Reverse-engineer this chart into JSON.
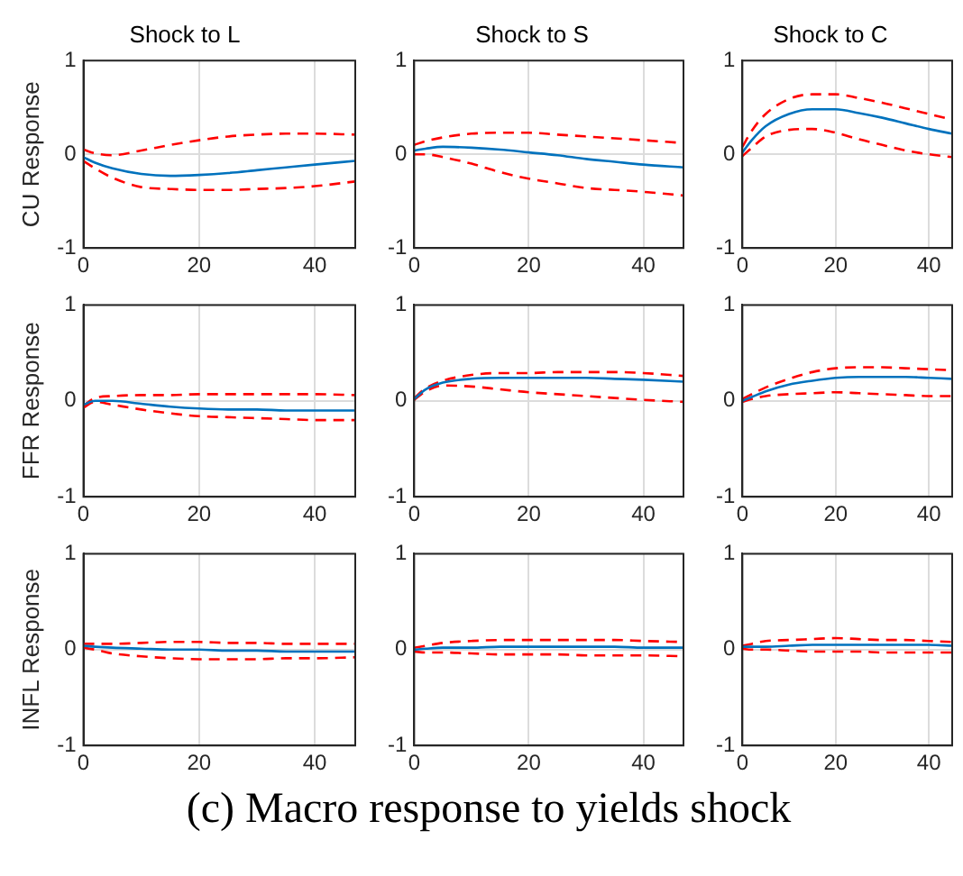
{
  "chart_data": [
    {
      "type": "line",
      "title": "Shock to L",
      "ylabel": "CU Response",
      "x": [
        0,
        2,
        5,
        10,
        15,
        20,
        25,
        30,
        35,
        40,
        47
      ],
      "xlim": [
        0,
        47
      ],
      "xticks": [
        0,
        20,
        40
      ],
      "ylim": [
        -1,
        1
      ],
      "yticks": [
        -1,
        0,
        1
      ],
      "grid": true,
      "series": [
        {
          "color": "#0072bd",
          "line_style": "solid",
          "values": [
            -0.03,
            -0.09,
            -0.15,
            -0.21,
            -0.23,
            -0.22,
            -0.2,
            -0.17,
            -0.14,
            -0.11,
            -0.07
          ]
        },
        {
          "color": "#ff0000",
          "line_style": "dashed",
          "values": [
            0.05,
            0.01,
            -0.01,
            0.04,
            0.1,
            0.15,
            0.19,
            0.21,
            0.22,
            0.22,
            0.21
          ]
        },
        {
          "color": "#ff0000",
          "line_style": "dashed",
          "values": [
            -0.07,
            -0.15,
            -0.25,
            -0.35,
            -0.37,
            -0.38,
            -0.38,
            -0.37,
            -0.36,
            -0.34,
            -0.29
          ]
        }
      ]
    },
    {
      "type": "line",
      "title": "Shock to S",
      "x": [
        0,
        2,
        5,
        10,
        15,
        20,
        25,
        30,
        35,
        40,
        47
      ],
      "xlim": [
        0,
        47
      ],
      "xticks": [
        0,
        20,
        40
      ],
      "ylim": [
        -1,
        1
      ],
      "yticks": [
        -1,
        0,
        1
      ],
      "grid": true,
      "series": [
        {
          "color": "#0072bd",
          "line_style": "solid",
          "values": [
            0.04,
            0.06,
            0.08,
            0.07,
            0.05,
            0.02,
            -0.01,
            -0.05,
            -0.08,
            -0.11,
            -0.14
          ]
        },
        {
          "color": "#ff0000",
          "line_style": "dashed",
          "values": [
            0.1,
            0.14,
            0.18,
            0.22,
            0.23,
            0.23,
            0.21,
            0.19,
            0.17,
            0.15,
            0.12
          ]
        },
        {
          "color": "#ff0000",
          "line_style": "dashed",
          "values": [
            0,
            0,
            -0.03,
            -0.1,
            -0.19,
            -0.26,
            -0.31,
            -0.36,
            -0.38,
            -0.4,
            -0.44
          ]
        }
      ]
    },
    {
      "type": "line",
      "title": "Shock to C",
      "x": [
        0,
        2,
        5,
        10,
        15,
        20,
        25,
        30,
        35,
        40,
        45
      ],
      "xlim": [
        0,
        45
      ],
      "xticks": [
        0,
        20,
        40
      ],
      "ylim": [
        -1,
        1
      ],
      "yticks": [
        -1,
        0,
        1
      ],
      "grid": true,
      "series": [
        {
          "color": "#0072bd",
          "line_style": "solid",
          "values": [
            0.02,
            0.15,
            0.3,
            0.43,
            0.48,
            0.48,
            0.44,
            0.39,
            0.33,
            0.27,
            0.22
          ]
        },
        {
          "color": "#ff0000",
          "line_style": "dashed",
          "values": [
            0.08,
            0.25,
            0.43,
            0.59,
            0.64,
            0.64,
            0.6,
            0.55,
            0.49,
            0.43,
            0.37
          ]
        },
        {
          "color": "#ff0000",
          "line_style": "dashed",
          "values": [
            -0.02,
            0.07,
            0.19,
            0.26,
            0.27,
            0.23,
            0.16,
            0.1,
            0.04,
            0,
            -0.03
          ]
        }
      ]
    },
    {
      "type": "line",
      "ylabel": "FFR Response",
      "x": [
        0,
        2,
        5,
        10,
        15,
        20,
        25,
        30,
        35,
        40,
        47
      ],
      "xlim": [
        0,
        47
      ],
      "xticks": [
        0,
        20,
        40
      ],
      "ylim": [
        -1,
        1
      ],
      "yticks": [
        -1,
        0,
        1
      ],
      "grid": true,
      "series": [
        {
          "color": "#0072bd",
          "line_style": "solid",
          "values": [
            -0.04,
            0,
            0,
            -0.03,
            -0.06,
            -0.08,
            -0.09,
            -0.09,
            -0.1,
            -0.1,
            -0.1
          ]
        },
        {
          "color": "#ff0000",
          "line_style": "dashed",
          "values": [
            -0.05,
            0.03,
            0.05,
            0.06,
            0.06,
            0.07,
            0.07,
            0.07,
            0.07,
            0.07,
            0.06
          ]
        },
        {
          "color": "#ff0000",
          "line_style": "dashed",
          "values": [
            -0.07,
            -0.01,
            -0.04,
            -0.09,
            -0.13,
            -0.16,
            -0.17,
            -0.18,
            -0.19,
            -0.2,
            -0.2
          ]
        }
      ]
    },
    {
      "type": "line",
      "x": [
        0,
        2,
        5,
        10,
        15,
        20,
        25,
        30,
        35,
        40,
        47
      ],
      "xlim": [
        0,
        47
      ],
      "xticks": [
        0,
        20,
        40
      ],
      "ylim": [
        -1,
        1
      ],
      "yticks": [
        -1,
        0,
        1
      ],
      "grid": true,
      "series": [
        {
          "color": "#0072bd",
          "line_style": "solid",
          "values": [
            0.02,
            0.12,
            0.19,
            0.23,
            0.24,
            0.24,
            0.24,
            0.24,
            0.23,
            0.22,
            0.2
          ]
        },
        {
          "color": "#ff0000",
          "line_style": "dashed",
          "values": [
            0.03,
            0.13,
            0.21,
            0.27,
            0.29,
            0.29,
            0.3,
            0.3,
            0.3,
            0.29,
            0.26
          ]
        },
        {
          "color": "#ff0000",
          "line_style": "dashed",
          "values": [
            0.01,
            0.1,
            0.16,
            0.15,
            0.12,
            0.09,
            0.07,
            0.05,
            0.03,
            0.01,
            -0.01
          ]
        }
      ]
    },
    {
      "type": "line",
      "x": [
        0,
        2,
        5,
        10,
        15,
        20,
        25,
        30,
        35,
        40,
        45
      ],
      "xlim": [
        0,
        45
      ],
      "xticks": [
        0,
        20,
        40
      ],
      "ylim": [
        -1,
        1
      ],
      "yticks": [
        -1,
        0,
        1
      ],
      "grid": true,
      "series": [
        {
          "color": "#0072bd",
          "line_style": "solid",
          "values": [
            0,
            0.04,
            0.1,
            0.17,
            0.21,
            0.24,
            0.25,
            0.25,
            0.25,
            0.24,
            0.23
          ]
        },
        {
          "color": "#ff0000",
          "line_style": "dashed",
          "values": [
            0.02,
            0.07,
            0.14,
            0.23,
            0.3,
            0.34,
            0.35,
            0.35,
            0.34,
            0.33,
            0.32
          ]
        },
        {
          "color": "#ff0000",
          "line_style": "dashed",
          "values": [
            -0.01,
            0.02,
            0.05,
            0.07,
            0.08,
            0.09,
            0.08,
            0.07,
            0.06,
            0.05,
            0.05
          ]
        }
      ]
    },
    {
      "type": "line",
      "ylabel": "INFL Response",
      "x": [
        0,
        2,
        5,
        10,
        15,
        20,
        25,
        30,
        35,
        40,
        47
      ],
      "xlim": [
        0,
        47
      ],
      "xticks": [
        0,
        20,
        40
      ],
      "ylim": [
        -1,
        1
      ],
      "yticks": [
        -1,
        0,
        1
      ],
      "grid": true,
      "series": [
        {
          "color": "#0072bd",
          "line_style": "solid",
          "values": [
            0.04,
            0.03,
            0.02,
            0.01,
            0,
            0,
            -0.01,
            -0.01,
            -0.02,
            -0.02,
            -0.02
          ]
        },
        {
          "color": "#ff0000",
          "line_style": "dashed",
          "values": [
            0.06,
            0.06,
            0.06,
            0.07,
            0.08,
            0.08,
            0.07,
            0.07,
            0.06,
            0.06,
            0.06
          ]
        },
        {
          "color": "#ff0000",
          "line_style": "dashed",
          "values": [
            0.02,
            0,
            -0.04,
            -0.07,
            -0.09,
            -0.1,
            -0.1,
            -0.1,
            -0.09,
            -0.09,
            -0.08
          ]
        }
      ]
    },
    {
      "type": "line",
      "annotations": [
        "(c) Macro response to yields shock"
      ],
      "x": [
        0,
        2,
        5,
        10,
        15,
        20,
        25,
        30,
        35,
        40,
        47
      ],
      "xlim": [
        0,
        47
      ],
      "xticks": [
        0,
        20,
        40
      ],
      "ylim": [
        -1,
        1
      ],
      "yticks": [
        -1,
        0,
        1
      ],
      "grid": true,
      "series": [
        {
          "color": "#0072bd",
          "line_style": "solid",
          "values": [
            0,
            0.01,
            0.02,
            0.02,
            0.03,
            0.03,
            0.03,
            0.03,
            0.03,
            0.02,
            0.02
          ]
        },
        {
          "color": "#ff0000",
          "line_style": "dashed",
          "values": [
            0.02,
            0.04,
            0.07,
            0.09,
            0.1,
            0.1,
            0.1,
            0.1,
            0.1,
            0.09,
            0.08
          ]
        },
        {
          "color": "#ff0000",
          "line_style": "dashed",
          "values": [
            -0.02,
            -0.03,
            -0.03,
            -0.04,
            -0.05,
            -0.05,
            -0.05,
            -0.06,
            -0.06,
            -0.06,
            -0.07
          ]
        }
      ]
    },
    {
      "type": "line",
      "x": [
        0,
        2,
        5,
        10,
        15,
        20,
        25,
        30,
        35,
        40,
        45
      ],
      "xlim": [
        0,
        45
      ],
      "xticks": [
        0,
        20,
        40
      ],
      "ylim": [
        -1,
        1
      ],
      "yticks": [
        -1,
        0,
        1
      ],
      "grid": true,
      "series": [
        {
          "color": "#0072bd",
          "line_style": "solid",
          "values": [
            0.03,
            0.03,
            0.03,
            0.04,
            0.05,
            0.05,
            0.05,
            0.05,
            0.05,
            0.05,
            0.04
          ]
        },
        {
          "color": "#ff0000",
          "line_style": "dashed",
          "values": [
            0.04,
            0.06,
            0.09,
            0.1,
            0.11,
            0.12,
            0.11,
            0.1,
            0.1,
            0.09,
            0.08
          ]
        },
        {
          "color": "#ff0000",
          "line_style": "dashed",
          "values": [
            0.01,
            0,
            0,
            -0.01,
            -0.02,
            -0.02,
            -0.02,
            -0.03,
            -0.03,
            -0.03,
            -0.03
          ]
        }
      ]
    }
  ]
}
